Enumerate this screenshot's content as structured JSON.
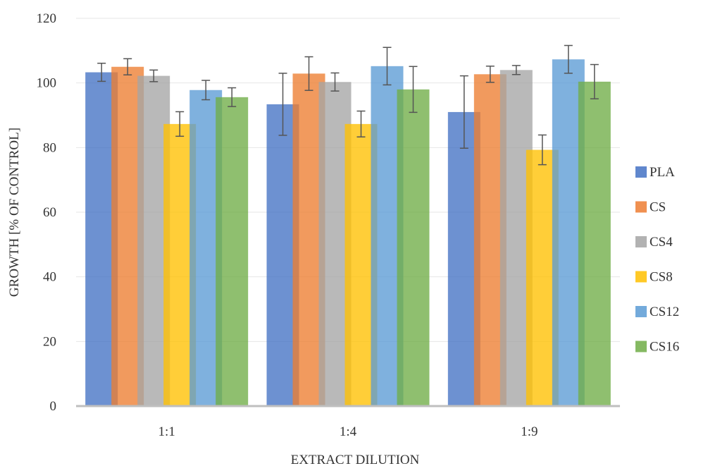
{
  "chart_data": {
    "type": "bar",
    "title": "",
    "xlabel": "EXTRACT DILUTION",
    "ylabel": "GROWTH [% OF CONTROL]",
    "ylim": [
      0,
      120
    ],
    "yticks": [
      0,
      20,
      40,
      60,
      80,
      100,
      120
    ],
    "grid": true,
    "legend_position": "right",
    "categories": [
      "1:1",
      "1:4",
      "1:9"
    ],
    "series": [
      {
        "name": "PLA",
        "color": "#4472C4",
        "values": [
          103.3,
          93.4,
          91.0
        ],
        "errors": [
          2.8,
          9.6,
          11.2
        ]
      },
      {
        "name": "CS",
        "color": "#ED7D31",
        "values": [
          105.0,
          102.9,
          102.7
        ],
        "errors": [
          2.5,
          5.2,
          2.5
        ]
      },
      {
        "name": "CS4",
        "color": "#A5A5A5",
        "values": [
          102.2,
          100.3,
          104.0
        ],
        "errors": [
          1.8,
          2.8,
          1.4
        ]
      },
      {
        "name": "CS8",
        "color": "#FFC000",
        "values": [
          87.3,
          87.3,
          79.3
        ],
        "errors": [
          3.8,
          4.0,
          4.6
        ]
      },
      {
        "name": "CS12",
        "color": "#5B9BD5",
        "values": [
          97.8,
          105.2,
          107.3
        ],
        "errors": [
          3.0,
          5.8,
          4.3
        ]
      },
      {
        "name": "CS16",
        "color": "#70AD47",
        "values": [
          95.6,
          98.0,
          100.4
        ],
        "errors": [
          2.9,
          7.1,
          5.3
        ]
      }
    ]
  }
}
